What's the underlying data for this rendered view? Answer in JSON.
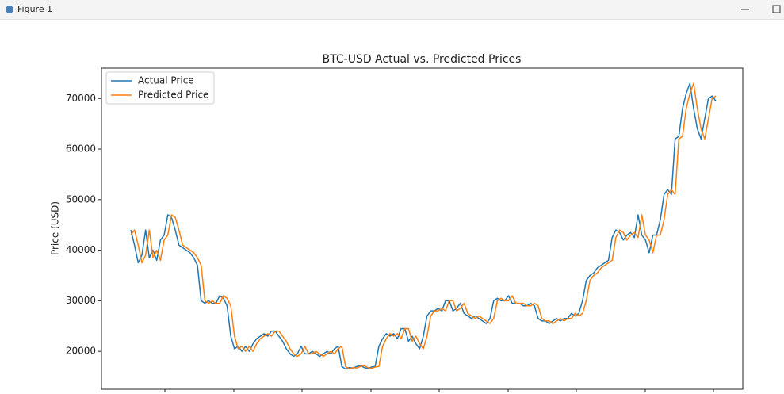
{
  "window": {
    "title": "Figure 1"
  },
  "chart_data": {
    "type": "line",
    "title": "BTC-USD Actual vs. Predicted Prices",
    "y_label": "Price (USD)",
    "ylim": [
      12500,
      76000
    ],
    "yticks": [
      20000,
      30000,
      40000,
      50000,
      60000,
      70000
    ],
    "grid": false,
    "legend": "upper left",
    "series": [
      {
        "name": "Actual Price",
        "color": "#1f77b4",
        "values": [
          44000,
          41000,
          37500,
          39000,
          44000,
          38500,
          40000,
          38000,
          42000,
          43000,
          47000,
          46500,
          44000,
          41000,
          40500,
          40000,
          39500,
          38500,
          37000,
          30000,
          29500,
          30000,
          29500,
          29500,
          31000,
          30500,
          29000,
          23000,
          20500,
          21000,
          20000,
          21000,
          20000,
          21500,
          22500,
          23000,
          23500,
          23000,
          24000,
          24000,
          23000,
          22000,
          20500,
          19500,
          19000,
          19500,
          21000,
          19500,
          19500,
          20000,
          19500,
          19000,
          19500,
          20000,
          19500,
          20500,
          21000,
          17000,
          16500,
          16800,
          16700,
          17000,
          17200,
          16800,
          16600,
          16900,
          17000,
          21000,
          22500,
          23500,
          23000,
          23500,
          22500,
          24500,
          24500,
          22000,
          23000,
          21500,
          20500,
          23000,
          27000,
          28000,
          28000,
          28500,
          28000,
          30000,
          30000,
          28000,
          28500,
          29500,
          27500,
          27000,
          26500,
          27000,
          26500,
          26000,
          25500,
          26500,
          30000,
          30500,
          30000,
          30000,
          31000,
          29500,
          29500,
          29500,
          29000,
          29000,
          29500,
          29000,
          26500,
          26000,
          26000,
          25500,
          26000,
          26500,
          26000,
          26500,
          26500,
          27500,
          27000,
          27500,
          30000,
          34000,
          35000,
          35500,
          36500,
          37000,
          37500,
          38000,
          42500,
          44000,
          43500,
          42000,
          43000,
          43500,
          42500,
          47000,
          43000,
          42000,
          39500,
          43000,
          43000,
          46000,
          51000,
          52000,
          51000,
          62000,
          62500,
          68000,
          71000,
          73000,
          68000,
          64000,
          62000,
          66000,
          70000,
          70500,
          69500
        ]
      },
      {
        "name": "Predicted Price",
        "color": "#ff7f0e",
        "values": [
          43000,
          44000,
          41000,
          37500,
          39000,
          44000,
          38500,
          40000,
          38000,
          42000,
          43000,
          47000,
          46500,
          44000,
          41000,
          40500,
          40000,
          39500,
          38500,
          37000,
          30000,
          29500,
          30000,
          29500,
          29500,
          31000,
          30500,
          29000,
          23000,
          20500,
          21000,
          20000,
          21000,
          20000,
          21500,
          22500,
          23000,
          23500,
          23000,
          24000,
          24000,
          23000,
          22000,
          20500,
          19500,
          19000,
          19500,
          21000,
          19500,
          19500,
          20000,
          19500,
          19000,
          19500,
          20000,
          19500,
          20500,
          21000,
          17000,
          16500,
          16800,
          16700,
          17000,
          17200,
          16800,
          16600,
          16900,
          17000,
          21000,
          22500,
          23500,
          23000,
          23500,
          22500,
          24500,
          24500,
          22000,
          23000,
          21500,
          20500,
          23000,
          27000,
          28000,
          28000,
          28500,
          28000,
          30000,
          30000,
          28000,
          28500,
          29500,
          27500,
          27000,
          26500,
          27000,
          26500,
          26000,
          25500,
          26500,
          30000,
          30500,
          30000,
          30000,
          31000,
          29500,
          29500,
          29500,
          29000,
          29000,
          29500,
          29000,
          26500,
          26000,
          26000,
          25500,
          26000,
          26500,
          26000,
          26500,
          26500,
          27500,
          27000,
          27500,
          30000,
          34000,
          35000,
          35500,
          36500,
          37000,
          37500,
          38000,
          42500,
          44000,
          43500,
          42000,
          43000,
          43500,
          42500,
          47000,
          43000,
          42000,
          39500,
          43000,
          43000,
          46000,
          51000,
          52000,
          51000,
          62000,
          62500,
          68000,
          71000,
          73000,
          68000,
          64000,
          62000,
          66000,
          70000,
          70500
        ]
      }
    ]
  }
}
